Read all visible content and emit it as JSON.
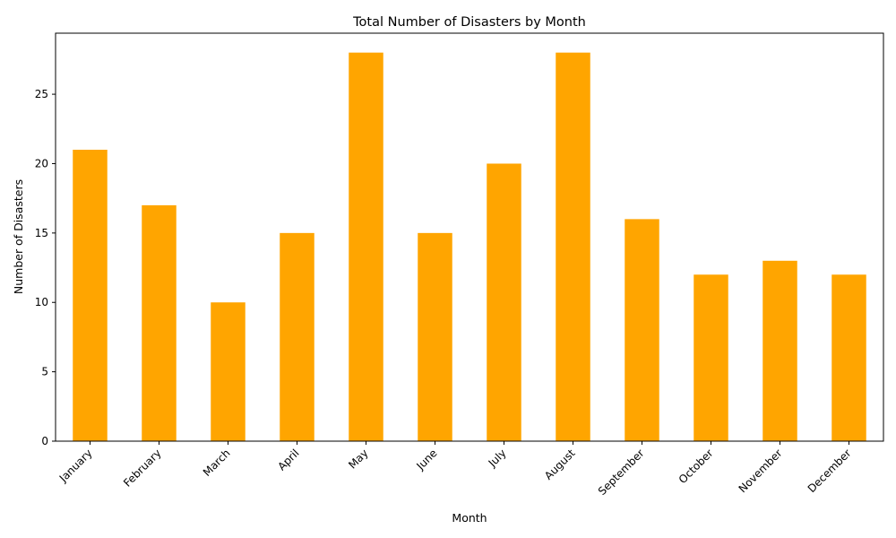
{
  "chart_data": {
    "type": "bar",
    "title": "Total Number of Disasters by Month",
    "xlabel": "Month",
    "ylabel": "Number of Disasters",
    "categories": [
      "January",
      "February",
      "March",
      "April",
      "May",
      "June",
      "July",
      "August",
      "September",
      "October",
      "November",
      "December"
    ],
    "values": [
      21,
      17,
      10,
      15,
      28,
      15,
      20,
      28,
      16,
      12,
      13,
      12
    ],
    "ylim": [
      0,
      29.4
    ],
    "yticks": [
      0,
      5,
      10,
      15,
      20,
      25
    ],
    "bar_color": "#FFA500",
    "grid": false,
    "legend": "none"
  }
}
